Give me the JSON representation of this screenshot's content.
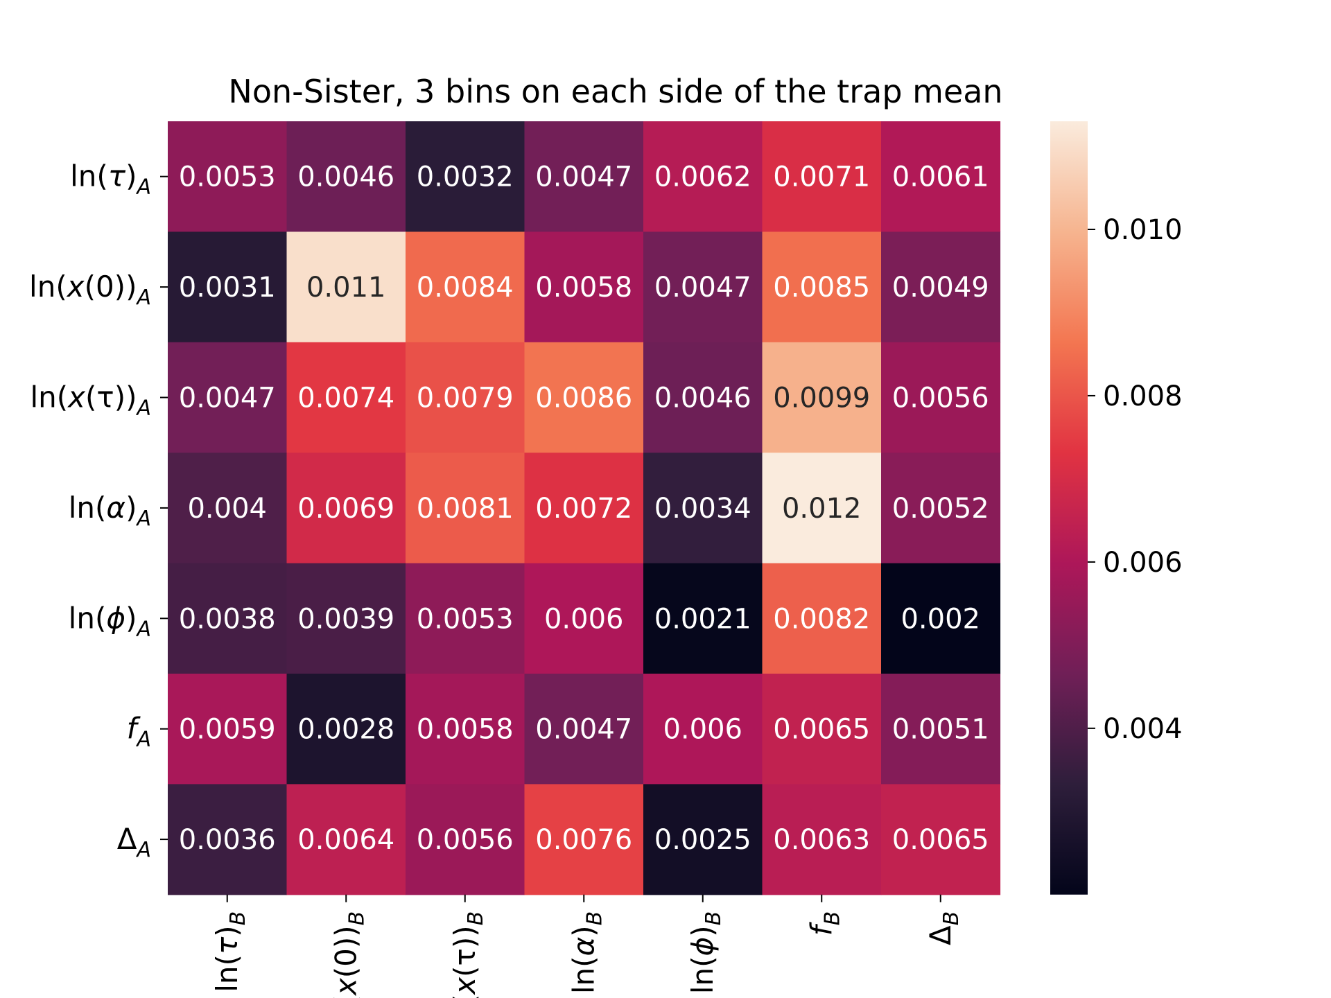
{
  "chart_data": {
    "type": "heatmap",
    "title": "Non-Sister, 3 bins on each side of the trap mean",
    "row_labels": [
      {
        "pre": "ln(",
        "var": "τ",
        "post": ")",
        "sub": "A"
      },
      {
        "pre": "ln(",
        "var": "x",
        "post": "(0))",
        "sub": "A"
      },
      {
        "pre": "ln(",
        "var": "x",
        "post": "(τ))",
        "sub": "A"
      },
      {
        "pre": "ln(",
        "var": "α",
        "post": ")",
        "sub": "A"
      },
      {
        "pre": "ln(",
        "var": "ϕ",
        "post": ")",
        "sub": "A"
      },
      {
        "pre": "",
        "var": "f",
        "post": "",
        "sub": "A"
      },
      {
        "pre": "Δ",
        "var": "",
        "post": "",
        "sub": "A"
      }
    ],
    "col_labels": [
      {
        "pre": "ln(",
        "var": "τ",
        "post": ")",
        "sub": "B"
      },
      {
        "pre": "ln(",
        "var": "x",
        "post": "(0))",
        "sub": "B"
      },
      {
        "pre": "ln(",
        "var": "x",
        "post": "(τ))",
        "sub": "B"
      },
      {
        "pre": "ln(",
        "var": "α",
        "post": ")",
        "sub": "B"
      },
      {
        "pre": "ln(",
        "var": "ϕ",
        "post": ")",
        "sub": "B"
      },
      {
        "pre": "",
        "var": "f",
        "post": "",
        "sub": "B"
      },
      {
        "pre": "Δ",
        "var": "",
        "post": "",
        "sub": "B"
      }
    ],
    "values": [
      [
        0.0053,
        0.0046,
        0.0032,
        0.0047,
        0.0062,
        0.0071,
        0.0061
      ],
      [
        0.0031,
        0.011,
        0.0084,
        0.0058,
        0.0047,
        0.0085,
        0.0049
      ],
      [
        0.0047,
        0.0074,
        0.0079,
        0.0086,
        0.0046,
        0.0099,
        0.0056
      ],
      [
        0.004,
        0.0069,
        0.0081,
        0.0072,
        0.0034,
        0.012,
        0.0052
      ],
      [
        0.0038,
        0.0039,
        0.0053,
        0.006,
        0.0021,
        0.0082,
        0.002
      ],
      [
        0.0059,
        0.0028,
        0.0058,
        0.0047,
        0.006,
        0.0065,
        0.0051
      ],
      [
        0.0036,
        0.0064,
        0.0056,
        0.0076,
        0.0025,
        0.0063,
        0.0065
      ]
    ],
    "cell_labels": [
      [
        "0.0053",
        "0.0046",
        "0.0032",
        "0.0047",
        "0.0062",
        "0.0071",
        "0.0061"
      ],
      [
        "0.0031",
        "0.011",
        "0.0084",
        "0.0058",
        "0.0047",
        "0.0085",
        "0.0049"
      ],
      [
        "0.0047",
        "0.0074",
        "0.0079",
        "0.0086",
        "0.0046",
        "0.0099",
        "0.0056"
      ],
      [
        "0.004",
        "0.0069",
        "0.0081",
        "0.0072",
        "0.0034",
        "0.012",
        "0.0052"
      ],
      [
        "0.0038",
        "0.0039",
        "0.0053",
        "0.006",
        "0.0021",
        "0.0082",
        "0.002"
      ],
      [
        "0.0059",
        "0.0028",
        "0.0058",
        "0.0047",
        "0.006",
        "0.0065",
        "0.0051"
      ],
      [
        "0.0036",
        "0.0064",
        "0.0056",
        "0.0076",
        "0.0025",
        "0.0063",
        "0.0065"
      ]
    ],
    "colorbar": {
      "colormap": "rocket",
      "vmin": 0.002,
      "vmax": 0.0113,
      "ticks": [
        0.004,
        0.006,
        0.008,
        0.01
      ],
      "tick_labels": [
        "0.004",
        "0.006",
        "0.008",
        "0.010"
      ]
    },
    "colormap_stops": [
      "#03051a",
      "#2e1e3b",
      "#701f57",
      "#ad1759",
      "#e13342",
      "#f37651",
      "#f6b48f",
      "#faebdd"
    ],
    "annotation_colors": {
      "light": "#ffffff",
      "dark": "#262626"
    }
  }
}
